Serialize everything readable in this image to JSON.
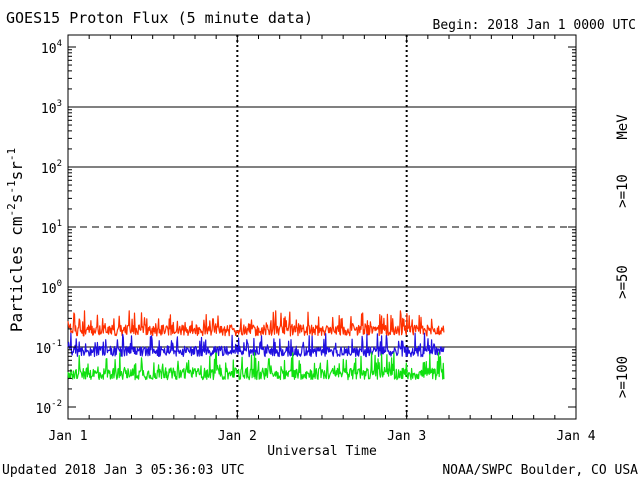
{
  "chart_data": {
    "type": "line",
    "title": "GOES15 Proton Flux (5 minute data)",
    "begin": "Begin: 2018 Jan 1 0000 UTC",
    "updated": "Updated 2018 Jan  3 05:36:03 UTC",
    "credit": "NOAA/SWPC Boulder, CO USA",
    "xlabel": "Universal Time",
    "ylabel_base": "Particles cm",
    "ylabel_sup1": "-2",
    "ylabel_s": "s",
    "ylabel_sup2": "-1",
    "ylabel_sr": "sr",
    "ylabel_sup3": "-1",
    "xlim": [
      0,
      3
    ],
    "ylim_exp": [
      -2.2,
      4.2
    ],
    "x_ticks": [
      {
        "value": 0,
        "label": "Jan 1"
      },
      {
        "value": 1,
        "label": "Jan 2"
      },
      {
        "value": 2,
        "label": "Jan 3"
      },
      {
        "value": 3,
        "label": "Jan 4"
      }
    ],
    "y_ticks": [
      {
        "exp": -2,
        "base": "10",
        "sup": "-2"
      },
      {
        "exp": -1,
        "base": "10",
        "sup": "-1"
      },
      {
        "exp": 0,
        "base": "10",
        "sup": "0"
      },
      {
        "exp": 1,
        "base": "10",
        "sup": "1"
      },
      {
        "exp": 2,
        "base": "10",
        "sup": "2"
      },
      {
        "exp": 3,
        "base": "10",
        "sup": "3"
      },
      {
        "exp": 4,
        "base": "10",
        "sup": "4"
      }
    ],
    "reference_lines": [
      {
        "exp": -1,
        "style": "solid"
      },
      {
        "exp": 0,
        "style": "solid"
      },
      {
        "exp": 1,
        "style": "dashed"
      },
      {
        "exp": 2,
        "style": "solid"
      },
      {
        "exp": 3,
        "style": "solid"
      }
    ],
    "unit_label": "MeV",
    "series": [
      {
        "name": ">=10",
        "color": "#ff3000",
        "data_end": 2.22,
        "low": 0.12,
        "high": 0.4
      },
      {
        "name": ">=50",
        "color": "#2010e0",
        "data_end": 2.22,
        "low": 0.055,
        "high": 0.17
      },
      {
        "name": ">=100",
        "color": "#10e010",
        "data_end": 2.22,
        "low": 0.022,
        "high": 0.08
      }
    ]
  }
}
